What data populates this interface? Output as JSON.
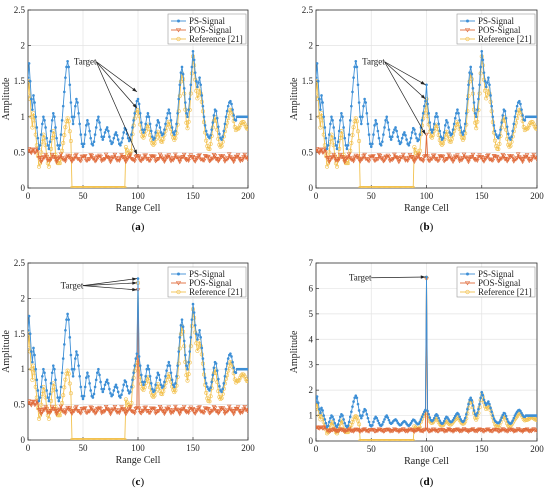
{
  "figure": {
    "legend_labels": [
      "PS-Signal",
      "POS-Signal",
      "Reference [21]"
    ],
    "colors": {
      "ps": "#3d8fd6",
      "pos": "#e06a3a",
      "ref": "#f2c14e"
    },
    "xlabel": "Range Cell",
    "ylabel": "Amplitude",
    "target_label": "Target"
  },
  "chart_data": [
    {
      "panel": "(a)",
      "type": "line",
      "xlim": [
        0,
        200
      ],
      "ylim": [
        0,
        2.5
      ],
      "xticks": [
        0,
        50,
        100,
        150,
        200
      ],
      "yticks": [
        0,
        0.5,
        1,
        1.5,
        2,
        2.5
      ],
      "grid": true,
      "legend": "top-right",
      "target_x": 100,
      "target_values": {
        "ps": 1.35,
        "ref": 1.1,
        "pos": 0.47
      },
      "xlabel": "Range Cell",
      "ylabel": "Amplitude"
    },
    {
      "panel": "(b)",
      "type": "line",
      "xlim": [
        0,
        200
      ],
      "ylim": [
        0,
        2.5
      ],
      "xticks": [
        0,
        50,
        100,
        150,
        200
      ],
      "yticks": [
        0,
        0.5,
        1,
        1.5,
        2,
        2.5
      ],
      "grid": true,
      "legend": "top-right",
      "target_x": 100,
      "target_values": {
        "ps": 1.45,
        "ref": 1.25,
        "pos": 0.75
      },
      "xlabel": "Range Cell",
      "ylabel": "Amplitude"
    },
    {
      "panel": "(c)",
      "type": "line",
      "xlim": [
        0,
        200
      ],
      "ylim": [
        0,
        2.5
      ],
      "xticks": [
        0,
        50,
        100,
        150,
        200
      ],
      "yticks": [
        0,
        0.5,
        1,
        1.5,
        2,
        2.5
      ],
      "grid": true,
      "legend": "top-right",
      "target_x": 100,
      "target_values": {
        "ps": 2.28,
        "ref": 2.22,
        "pos": 2.12
      },
      "xlabel": "Range Cell",
      "ylabel": "Amplitude"
    },
    {
      "panel": "(d)",
      "type": "line",
      "xlim": [
        0,
        200
      ],
      "ylim": [
        0,
        7
      ],
      "xticks": [
        0,
        50,
        100,
        150,
        200
      ],
      "yticks": [
        0,
        1,
        2,
        3,
        4,
        5,
        6,
        7
      ],
      "grid": true,
      "legend": "top-right",
      "target_x": 100,
      "target_values": {
        "ps": 6.45,
        "ref": 6.42,
        "pos": 6.38
      },
      "xlabel": "Range Cell",
      "ylabel": "Amplitude"
    }
  ]
}
